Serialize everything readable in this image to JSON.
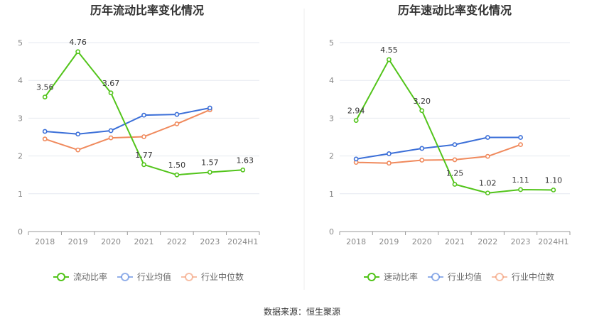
{
  "source": "数据来源：恒生聚源",
  "chart_data": [
    {
      "type": "line",
      "title": "历年流动比率变化情况",
      "categories": [
        "2018",
        "2019",
        "2020",
        "2021",
        "2022",
        "2023",
        "2024H1"
      ],
      "ylim": [
        0,
        5
      ],
      "yticks": [
        0,
        1,
        2,
        3,
        4,
        5
      ],
      "grid": true,
      "legend": "bottom",
      "series": [
        {
          "name": "流动比率",
          "color": "#52c41a",
          "labels": true,
          "values": [
            3.56,
            4.76,
            3.67,
            1.77,
            1.5,
            1.57,
            1.63
          ]
        },
        {
          "name": "行业均值",
          "color": "#3b6fd8",
          "labels": false,
          "values": [
            2.65,
            2.58,
            2.67,
            3.08,
            3.1,
            3.27,
            null
          ]
        },
        {
          "name": "行业中位数",
          "color": "#f08a5d",
          "labels": false,
          "values": [
            2.45,
            2.16,
            2.48,
            2.51,
            2.85,
            3.22,
            null
          ]
        }
      ]
    },
    {
      "type": "line",
      "title": "历年速动比率变化情况",
      "categories": [
        "2018",
        "2019",
        "2020",
        "2021",
        "2022",
        "2023",
        "2024H1"
      ],
      "ylim": [
        0,
        5
      ],
      "yticks": [
        0,
        1,
        2,
        3,
        4,
        5
      ],
      "grid": true,
      "legend": "bottom",
      "series": [
        {
          "name": "速动比率",
          "color": "#52c41a",
          "labels": true,
          "values": [
            2.94,
            4.55,
            3.2,
            1.25,
            1.02,
            1.11,
            1.1
          ]
        },
        {
          "name": "行业均值",
          "color": "#3b6fd8",
          "labels": false,
          "values": [
            1.92,
            2.06,
            2.2,
            2.3,
            2.49,
            2.49,
            null
          ]
        },
        {
          "name": "行业中位数",
          "color": "#f08a5d",
          "labels": false,
          "values": [
            1.83,
            1.81,
            1.89,
            1.9,
            1.99,
            2.3,
            null
          ]
        }
      ]
    }
  ]
}
